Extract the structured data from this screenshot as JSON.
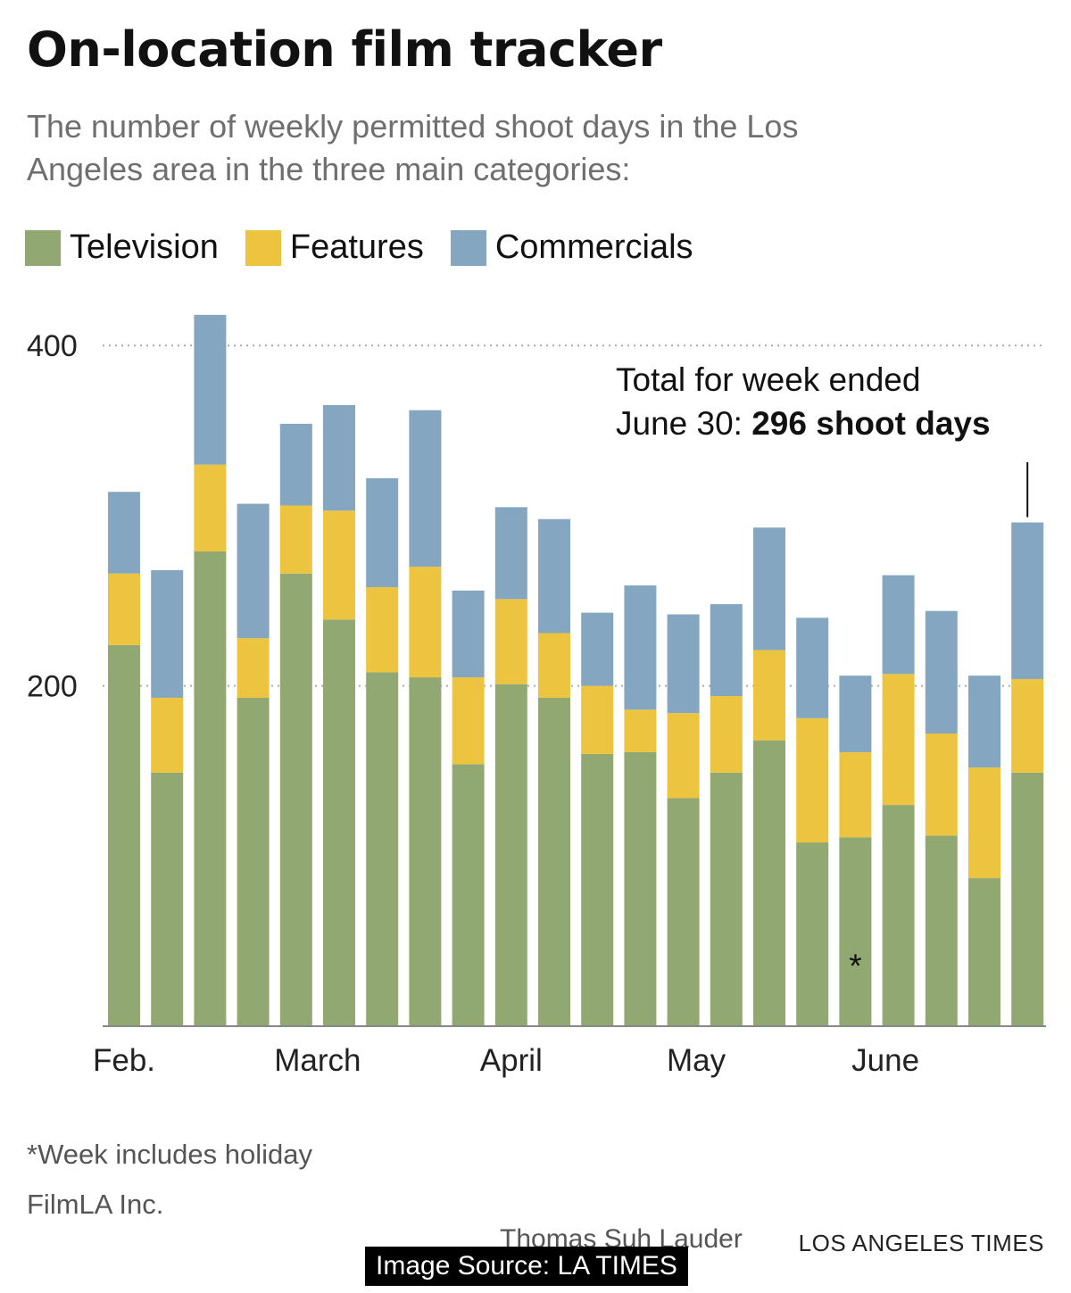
{
  "header": {
    "title": "On-location film tracker",
    "subtitle": "The number of weekly permitted shoot days in the Los Angeles area in the three main categories:"
  },
  "footer": {
    "footnote": "*Week includes holiday",
    "source": "FilmLA Inc.",
    "credit": "Thomas Suh Lauder",
    "publisher": "LOS ANGELES TIMES",
    "image_source": "Image Source: LA TIMES"
  },
  "colors": {
    "television": "#91a872",
    "features": "#ecc43f",
    "commercials": "#84a6c0",
    "gridline": "#aaaaaa",
    "axis": "#888888"
  },
  "chart_data": {
    "type": "bar",
    "stacked": true,
    "title": "On-location film tracker",
    "subtitle": "The number of weekly permitted shoot days in the Los Angeles area in the three main categories:",
    "xlabel": "",
    "ylabel": "",
    "ylim": [
      0,
      420
    ],
    "yticks": [
      200,
      400
    ],
    "grid": "dotted horizontal at 200 and 400",
    "legend_position": "top-left",
    "month_labels": [
      {
        "label": "Feb.",
        "week_index": 0
      },
      {
        "label": "March",
        "week_index": 4.5
      },
      {
        "label": "April",
        "week_index": 9
      },
      {
        "label": "May",
        "week_index": 13.3
      },
      {
        "label": "June",
        "week_index": 17.7
      }
    ],
    "weeks": 22,
    "series": [
      {
        "name": "Television",
        "color": "#91a872",
        "values": [
          224,
          149,
          279,
          193,
          266,
          239,
          208,
          205,
          154,
          201,
          193,
          160,
          161,
          134,
          149,
          168,
          108,
          111,
          130,
          112,
          87,
          149
        ]
      },
      {
        "name": "Features",
        "color": "#ecc43f",
        "values": [
          42,
          44,
          51,
          35,
          40,
          64,
          50,
          65,
          51,
          50,
          38,
          40,
          25,
          50,
          45,
          53,
          73,
          50,
          77,
          60,
          65,
          55
        ]
      },
      {
        "name": "Commercials",
        "color": "#84a6c0",
        "values": [
          48,
          75,
          88,
          79,
          48,
          62,
          64,
          92,
          51,
          54,
          67,
          43,
          73,
          58,
          54,
          72,
          59,
          45,
          58,
          72,
          54,
          92
        ]
      }
    ],
    "annotations": [
      {
        "week_index": 17,
        "text": "*"
      },
      {
        "week_index": 21,
        "line1": "Total for week ended",
        "line2_prefix": "June 30: ",
        "line2_bold": "296 shoot days"
      }
    ]
  }
}
